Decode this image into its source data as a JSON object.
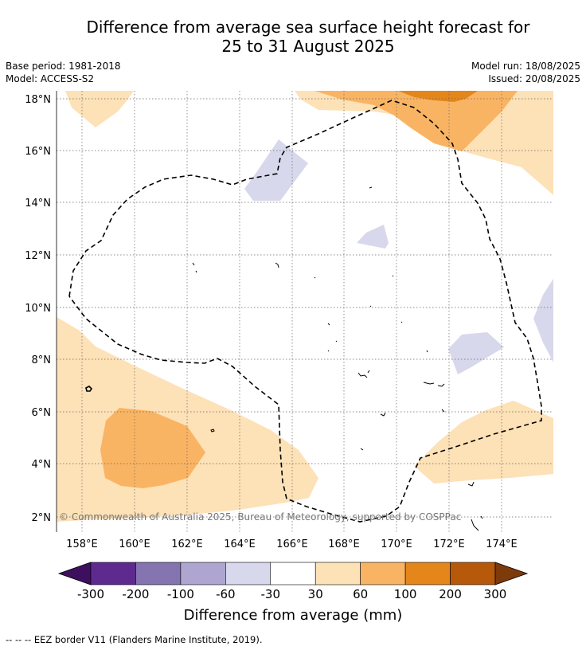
{
  "title_line1": "Difference from average sea surface height forecast for",
  "title_line2": "25 to 31 August 2025",
  "meta_left": {
    "base_period": "Base period: 1981-2018",
    "model": "Model: ACCESS-S2"
  },
  "meta_right": {
    "model_run": "Model run: 18/08/2025",
    "issued": "Issued: 20/08/2025"
  },
  "map": {
    "lon_ticks": [
      "158°E",
      "160°E",
      "162°E",
      "164°E",
      "166°E",
      "168°E",
      "170°E",
      "172°E",
      "174°E"
    ],
    "lat_ticks": [
      "2°N",
      "4°N",
      "6°N",
      "8°N",
      "10°N",
      "12°N",
      "14°N",
      "16°N",
      "18°N"
    ],
    "lon_range": [
      157,
      176
    ],
    "lat_range": [
      1.4,
      18.3
    ],
    "copyright": "© Commonwealth of Australia 2025, Bureau of Meteorology, supported by COSPPac"
  },
  "colorbar": {
    "label": "Difference from average (mm)",
    "ticks": [
      "-300",
      "-200",
      "-100",
      "-60",
      "-30",
      "30",
      "60",
      "100",
      "200",
      "300"
    ],
    "colors": [
      "#3f0f5f",
      "#5f2a8f",
      "#8474b0",
      "#aea6d0",
      "#d8d8ec",
      "#ffffff",
      "#fde1b7",
      "#f9b463",
      "#e5861a",
      "#b6590a",
      "#7d3a0b"
    ]
  },
  "footer": "--  --  -- EEZ border V11 (Flanders Marine Institute, 2019)."
}
